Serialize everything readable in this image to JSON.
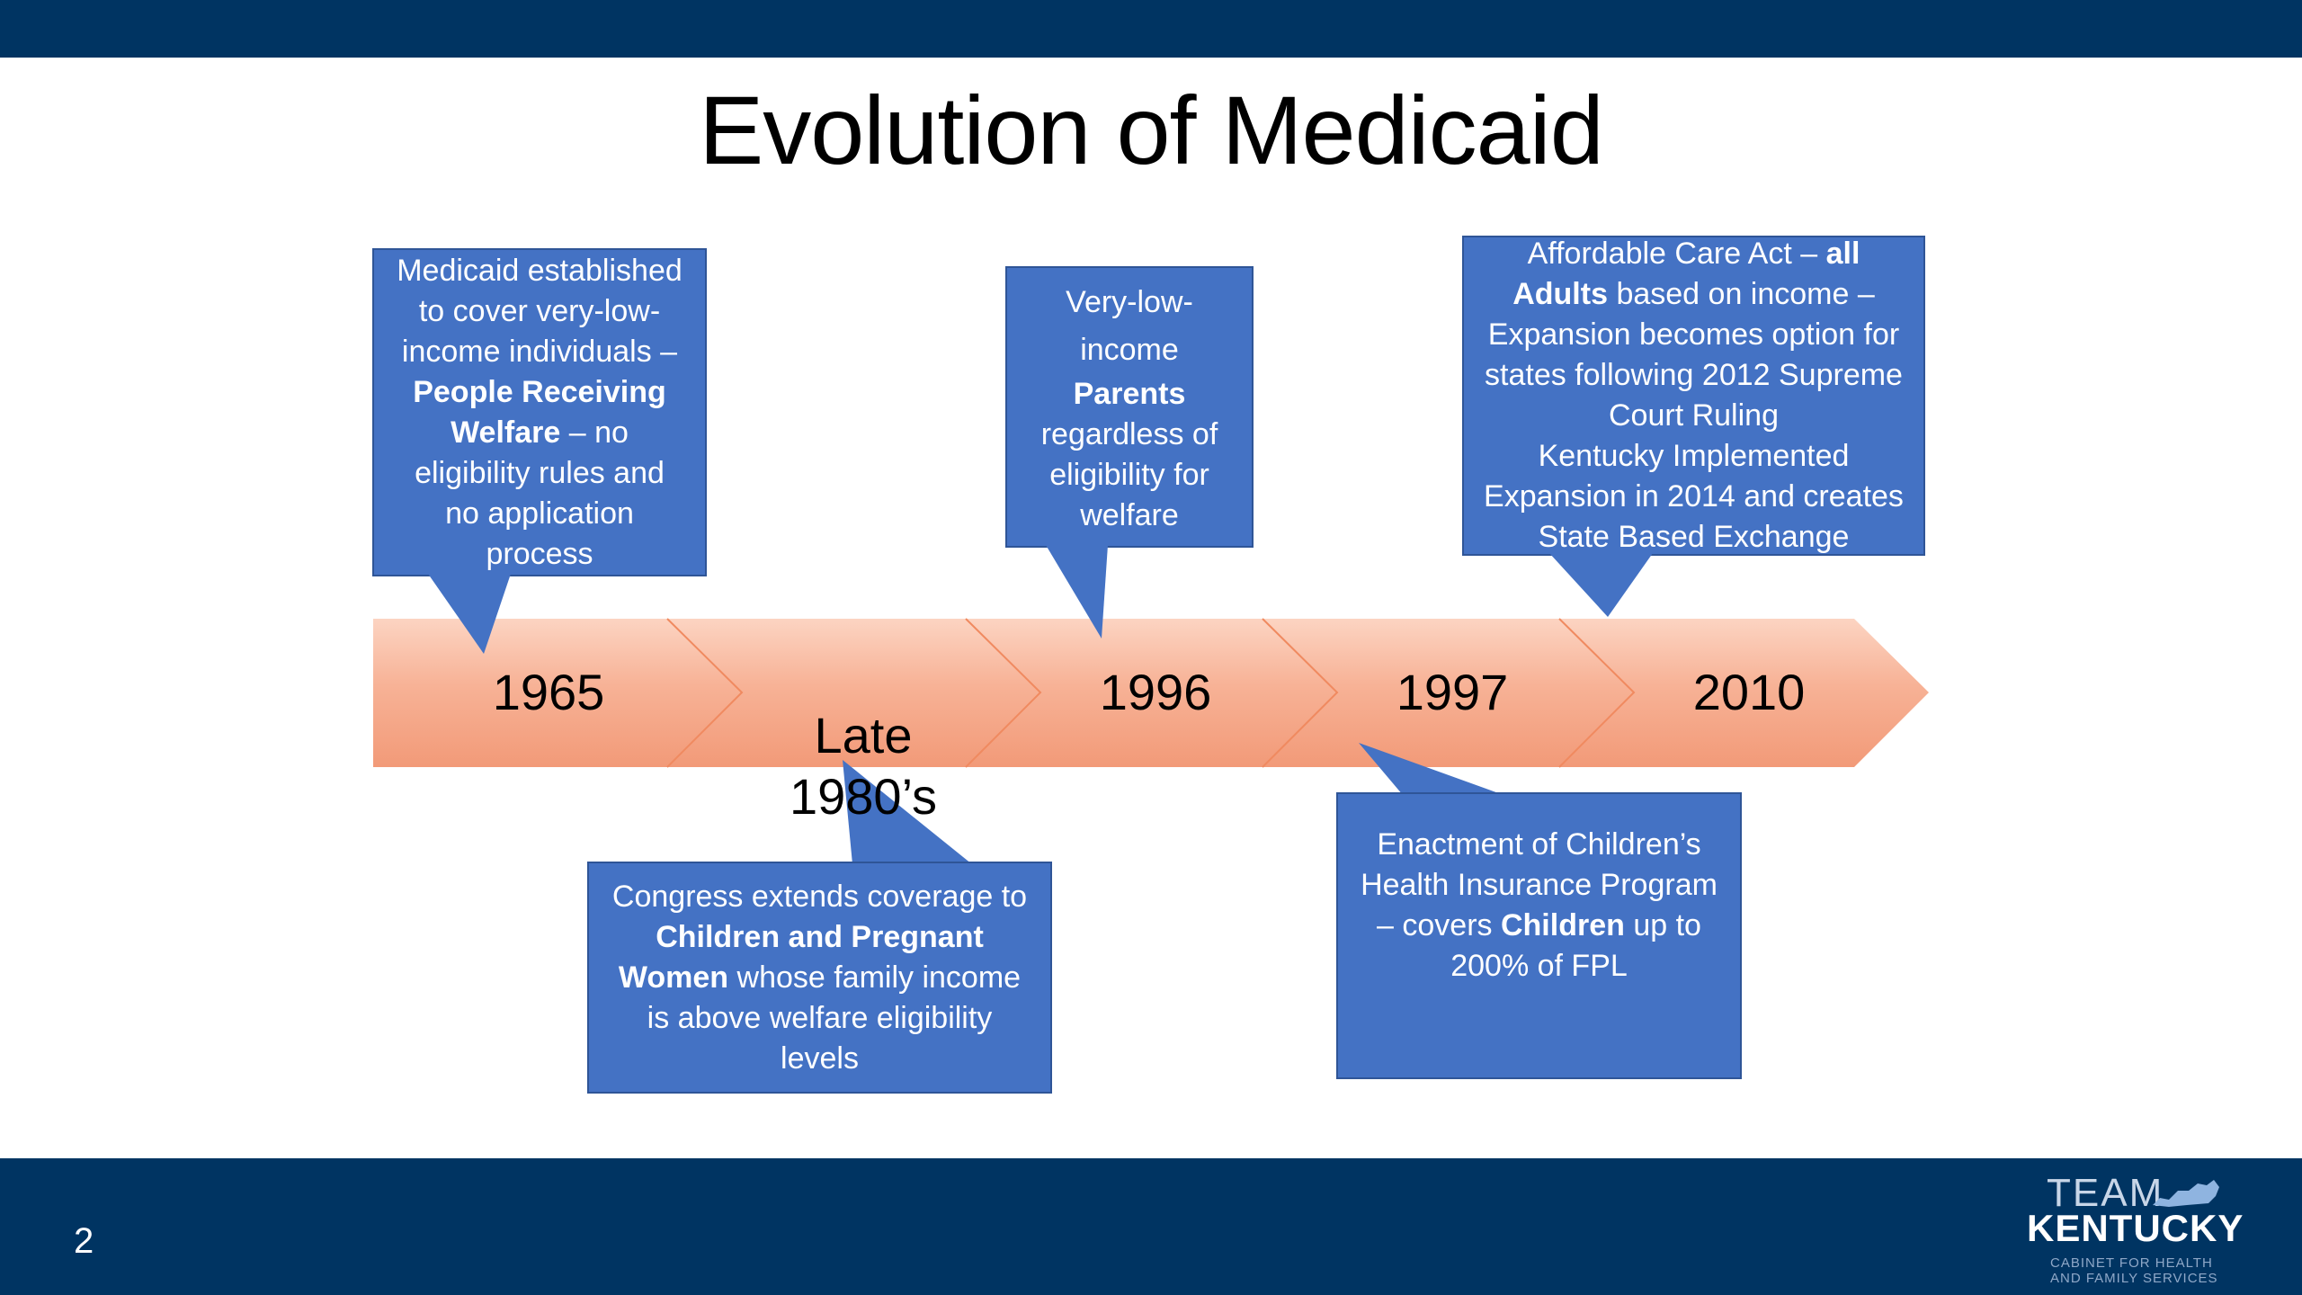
{
  "slide": {
    "title": "Evolution of Medicaid",
    "page_number": "2"
  },
  "colors": {
    "bar": "#003462",
    "callout": "#4472c4",
    "chevron": "#f5a88a",
    "chevron_light": "#fcd4c2"
  },
  "timeline": {
    "years": [
      "1965",
      "Late 1980’s",
      "1996",
      "1997",
      "2010"
    ]
  },
  "callouts": {
    "c1965": {
      "line1": "Medicaid established",
      "line2": "to cover very-low-",
      "line3": "income individuals –",
      "line4_bold": "People Receiving",
      "line5_bold": "Welfare",
      "line5_rest": " – no",
      "line6": "eligibility rules and",
      "line7": "no application",
      "line8": "process"
    },
    "c1980s": {
      "line1": "Congress extends coverage to",
      "line2_bold": "Children and Pregnant",
      "line3_bold": "Women",
      "line3_rest": " whose family income",
      "line4": "is above welfare eligibility",
      "line5": "levels"
    },
    "c1996": {
      "line1": "Very-low-",
      "line2": "income",
      "line3_bold": "Parents",
      "line4": "regardless of",
      "line5": "eligibility for",
      "line6": "welfare"
    },
    "c1997": {
      "line1": "Enactment of Children’s",
      "line2": "Health Insurance Program",
      "line3_pre": "– covers ",
      "line3_bold": "Children",
      "line3_rest": " up to",
      "line4": "200% of FPL"
    },
    "c2010": {
      "line1_pre": "Affordable Care Act – ",
      "line1_bold": "all",
      "line2_bold": "Adults",
      "line2_rest": " based on income –",
      "line3": "Expansion becomes option for",
      "line4": "states following 2012 Supreme",
      "line5": "Court Ruling",
      "line6": "Kentucky Implemented",
      "line7": "Expansion in 2014 and creates",
      "line8": "State Based Exchange"
    }
  },
  "logo": {
    "team": "TEAM",
    "kentucky": "KENTUCKY",
    "sub1": "CABINET FOR HEALTH",
    "sub2": "AND FAMILY SERVICES"
  }
}
